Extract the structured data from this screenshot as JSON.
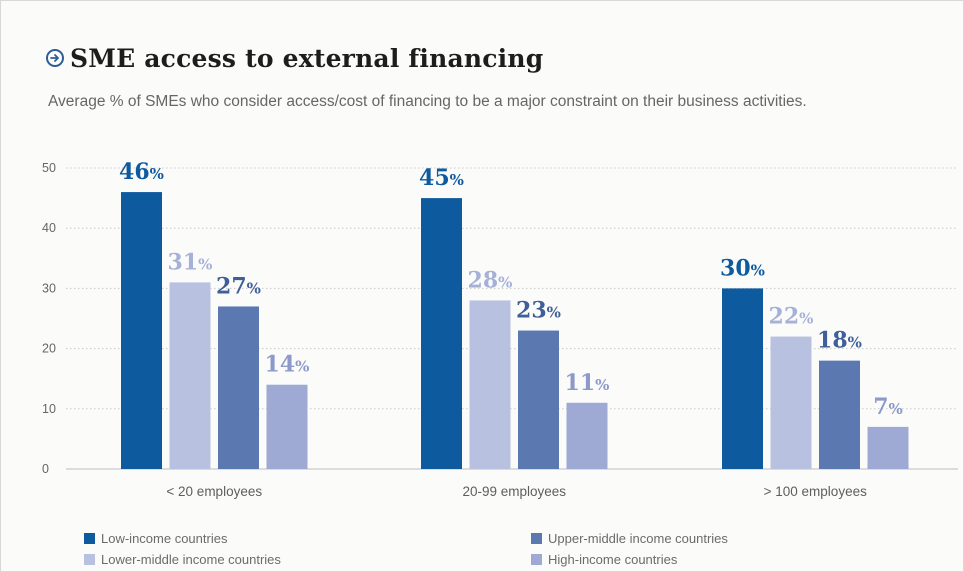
{
  "title": "SME access to external financing",
  "subtitle": "Average % of SMEs who consider access/cost of financing to be a major constraint on their business activities.",
  "chart_data": {
    "type": "bar",
    "title": "SME access to external financing",
    "subtitle": "Average % of SMEs who consider access/cost of financing to be a major constraint on their business activities.",
    "categories": [
      "< 20 employees",
      "20-99 employees",
      "> 100 employees"
    ],
    "series": [
      {
        "name": "Low-income countries",
        "color": "#0e5a9e",
        "values": [
          46,
          45,
          30
        ],
        "labels": [
          "46",
          "45",
          "30"
        ]
      },
      {
        "name": "Lower-middle income countries",
        "color": "#b8c2e0",
        "values": [
          31,
          28,
          22
        ],
        "labels": [
          "31",
          "28",
          "22"
        ]
      },
      {
        "name": "Upper-middle income countries",
        "color": "#5b79b0",
        "values": [
          27,
          23,
          18
        ],
        "labels": [
          "27",
          "23",
          "18"
        ]
      },
      {
        "name": "High-income countries",
        "color": "#9ea9d4",
        "values": [
          14,
          11,
          7
        ],
        "labels": [
          "14",
          "11",
          "7"
        ]
      }
    ],
    "label_colors": [
      "#0e5a9e",
      "#a6b1d8",
      "#3e5f98",
      "#8d99c9"
    ],
    "value_suffix": "%",
    "ylim": [
      0,
      50
    ],
    "yticks": [
      0,
      10,
      20,
      30,
      40,
      50
    ],
    "grid": true,
    "legend_position": "bottom",
    "xlabel": "",
    "ylabel": ""
  },
  "legend": {
    "items": [
      {
        "label": "Low-income countries",
        "color": "#0e5a9e"
      },
      {
        "label": "Upper-middle income countries",
        "color": "#5b79b0"
      },
      {
        "label": "Lower-middle income countries",
        "color": "#b8c2e0"
      },
      {
        "label": "High-income countries",
        "color": "#9ea9d4"
      }
    ]
  }
}
